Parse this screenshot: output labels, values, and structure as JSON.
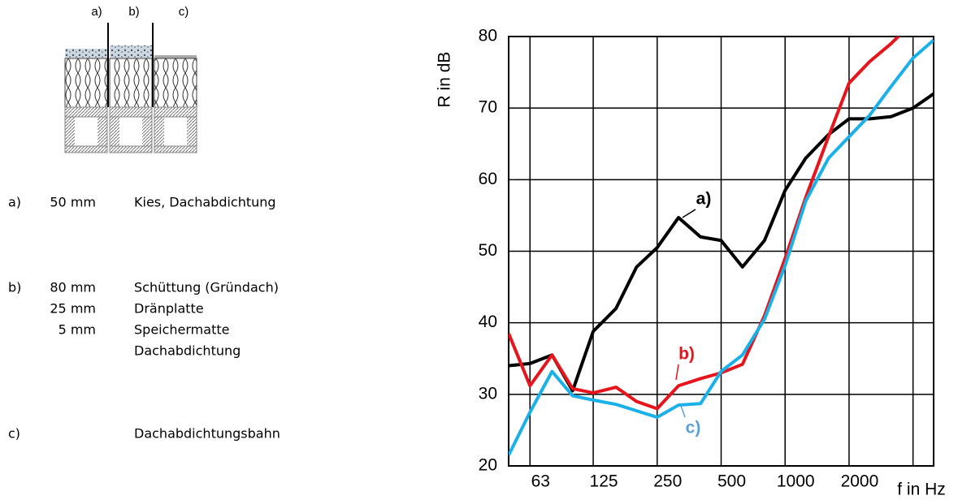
{
  "diagram": {
    "labels": [
      "a)",
      "b)",
      "c)"
    ]
  },
  "layers": [
    {
      "letter": "a)",
      "rows": [
        {
          "thickness": "50 mm",
          "text": "Kies, Dachabdichtung"
        }
      ]
    },
    {
      "letter": "b)",
      "rows": [
        {
          "thickness": "80 mm",
          "text": "Schüttung (Gründach)"
        },
        {
          "thickness": "25 mm",
          "text": "Dränplatte"
        },
        {
          "thickness": "5 mm",
          "text": "Speichermatte"
        },
        {
          "text": "Dachabdichtung"
        }
      ]
    },
    {
      "letter": "c)",
      "rows": [
        {
          "text": "Dachabdichtungsbahn"
        }
      ]
    }
  ],
  "chart_data": {
    "type": "line",
    "y_label": "R in dB",
    "x_label": "f in Hz",
    "x": [
      50,
      63,
      80,
      100,
      125,
      160,
      200,
      250,
      315,
      400,
      500,
      630,
      800,
      1000,
      1250,
      1600,
      2000,
      2500,
      3150,
      4000,
      5000
    ],
    "log_x": true,
    "xlim": [
      50,
      5000
    ],
    "xticks": [
      63,
      125,
      250,
      500,
      1000,
      2000
    ],
    "xgrid": [
      63,
      125,
      250,
      500,
      1000,
      2000,
      4000
    ],
    "ylim": [
      20,
      80
    ],
    "yticks": [
      20,
      30,
      40,
      50,
      60,
      70,
      80
    ],
    "grid": true,
    "series": [
      {
        "name": "a)",
        "color": "#000000",
        "label_color": "#000000",
        "values": [
          34,
          34.3,
          35.5,
          30.5,
          38.8,
          42,
          47.8,
          50.5,
          54.7,
          52,
          51.5,
          47.8,
          51.5,
          58.5,
          63,
          66.3,
          68.5,
          68.5,
          68.8,
          70,
          72
        ]
      },
      {
        "name": "b)",
        "color": "#e8141b",
        "label_color": "#e8141b",
        "values": [
          38.5,
          31.2,
          35.5,
          30.8,
          30.2,
          31,
          29,
          28,
          31.2,
          32.2,
          33,
          34.2,
          41,
          49,
          57.5,
          66,
          73.5,
          76.5,
          79,
          82,
          84
        ]
      },
      {
        "name": "c)",
        "color": "#1ab0e8",
        "label_color": "#5aa0d8",
        "values": [
          21.5,
          27.5,
          33.2,
          29.8,
          29.2,
          28.6,
          27.7,
          26.8,
          28.5,
          28.7,
          33.2,
          35.5,
          40.5,
          48,
          57,
          63,
          66,
          69,
          73,
          77,
          79.5
        ]
      }
    ]
  }
}
